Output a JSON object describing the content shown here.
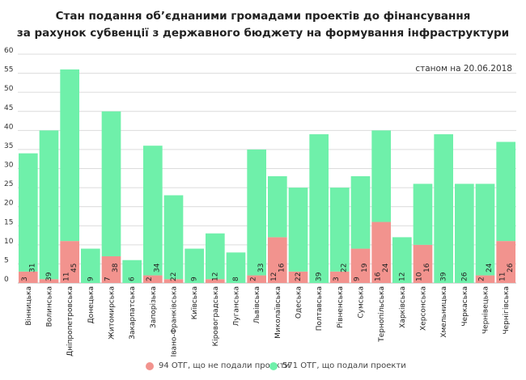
{
  "title_line1": "Стан подання об’єднаними громадами проектів до фінансування",
  "title_line2": "за рахунок субвенції з державного бюджету на формування інфраструктури",
  "date_note": "станом на 20.06.2018",
  "legend": {
    "not_submitted": "94 ОТГ, що не подали проекти",
    "submitted": "571 ОТГ, що подали проекти"
  },
  "colors": {
    "not_submitted": "#f2938e",
    "submitted": "#6ff0aa",
    "grid": "#dcdcdc"
  },
  "chart_data": {
    "type": "bar",
    "stacked": true,
    "ylim": [
      0,
      60
    ],
    "yticks": [
      0,
      5,
      10,
      15,
      20,
      25,
      30,
      35,
      40,
      45,
      50,
      55,
      60
    ],
    "grid": true,
    "legend_position": "bottom",
    "categories": [
      "Вінницька",
      "Волинська",
      "Дніпропетровська",
      "Донецька",
      "Житомирська",
      "Закарпатська",
      "Запорізька",
      "Івано-Франківська",
      "Київська",
      "Кіровоградська",
      "Луганська",
      "Львівська",
      "Миколаївська",
      "Одеська",
      "Полтавська",
      "Рівненська",
      "Сумська",
      "Тернопільська",
      "Харківська",
      "Херсонська",
      "Хмельницька",
      "Черкаська",
      "Чернівецька",
      "Чернігівська"
    ],
    "series": [
      {
        "name": "94 ОТГ, що не подали проекти",
        "values": [
          3,
          1,
          11,
          0,
          7,
          0,
          2,
          1,
          0,
          1,
          0,
          2,
          12,
          3,
          0,
          3,
          9,
          16,
          0,
          10,
          0,
          0,
          2,
          11
        ],
        "labels": [
          "3",
          "",
          "11",
          "",
          "7",
          "",
          "2",
          "",
          "",
          "",
          "",
          "2",
          "12",
          "",
          "",
          "3",
          "9",
          "16",
          "",
          "10",
          "",
          "",
          "2",
          "11"
        ]
      },
      {
        "name": "571 ОТГ, що подали проекти",
        "values": [
          31,
          39,
          45,
          9,
          38,
          6,
          34,
          22,
          9,
          12,
          8,
          33,
          16,
          22,
          39,
          22,
          19,
          24,
          12,
          16,
          39,
          26,
          24,
          26
        ],
        "labels": [
          "31",
          "39",
          "45",
          "9",
          "38",
          "6",
          "34",
          "22",
          "9",
          "12",
          "8",
          "33",
          "16",
          "22",
          "39",
          "22",
          "19",
          "24",
          "12",
          "16",
          "39",
          "26",
          "24",
          "26"
        ]
      }
    ]
  }
}
